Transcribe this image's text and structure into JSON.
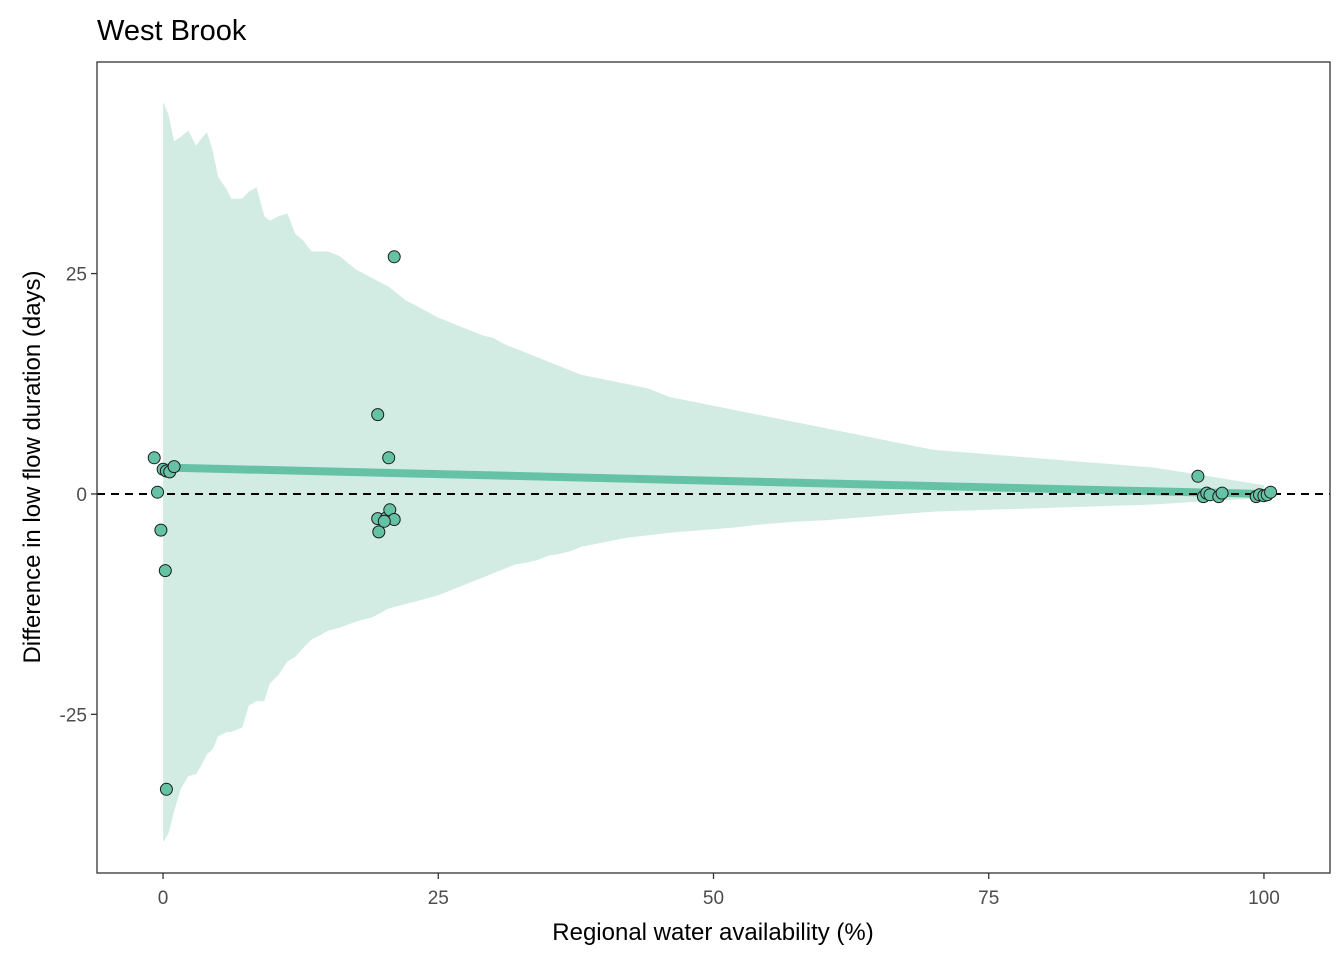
{
  "chart_data": {
    "type": "scatter",
    "title": "West Brook",
    "xlabel": "Regional water availability (%)",
    "ylabel": "Difference in low flow duration (days)",
    "xlim": [
      -6,
      106
    ],
    "ylim": [
      -43,
      49
    ],
    "x_ticks": [
      0,
      25,
      50,
      75,
      100
    ],
    "x_tick_labels": [
      "0",
      "25",
      "50",
      "75",
      "100"
    ],
    "y_ticks": [
      -25,
      0,
      25
    ],
    "y_tick_labels": [
      "-25",
      "0",
      "25"
    ],
    "grid": false,
    "legend": "none",
    "colors": {
      "point": "#66c2a5",
      "ribbon": "#d2ece3",
      "fit_line": "#66c2a5",
      "reference_line": "#000000",
      "panel_border": "#333333"
    },
    "reference_line": {
      "y": 0,
      "style": "dashed"
    },
    "fit_line": {
      "x": [
        0,
        100
      ],
      "y": [
        3.0,
        0.0
      ]
    },
    "ribbon": {
      "x": [
        0,
        0.5,
        1,
        1.6,
        2.3,
        3,
        3.6,
        4,
        4.5,
        5,
        5.8,
        6.2,
        7.2,
        7.8,
        8.5,
        9.2,
        9.7,
        10.5,
        11.3,
        12,
        12.7,
        13.5,
        14.3,
        15,
        16,
        17.5,
        19,
        20.5,
        22,
        23.5,
        25,
        26,
        27,
        28,
        29,
        30,
        31,
        32,
        33,
        34,
        35,
        36,
        37,
        38,
        40,
        42,
        44,
        46,
        48,
        50,
        52,
        54,
        56,
        58,
        60,
        62,
        64,
        66,
        68,
        70,
        75,
        80,
        85,
        90,
        95,
        100
      ],
      "upper": [
        44.5,
        43,
        40,
        40.5,
        41.2,
        39.5,
        40.5,
        41,
        39,
        36,
        34.5,
        33.5,
        33.5,
        34.3,
        34.8,
        31.5,
        31,
        31.5,
        31.8,
        29.5,
        28.8,
        27.5,
        27.5,
        27.5,
        27,
        25.5,
        24.5,
        23.5,
        22,
        21,
        20,
        19.5,
        19,
        18.5,
        18,
        17.7,
        17,
        16.5,
        16,
        15.5,
        15,
        14.5,
        14,
        13.5,
        13,
        12.5,
        12,
        11,
        10.5,
        10,
        9.5,
        9,
        8.5,
        8,
        7.5,
        7,
        6.5,
        6,
        5.5,
        5,
        4.5,
        4,
        3.5,
        3,
        2,
        1
      ],
      "lower": [
        -39.5,
        -38.5,
        -36,
        -33.5,
        -32,
        -31.8,
        -30.5,
        -29.5,
        -29,
        -27.5,
        -27,
        -27,
        -26.5,
        -24,
        -23.5,
        -23.5,
        -21.5,
        -20.5,
        -19,
        -18.5,
        -17.5,
        -16.5,
        -16,
        -15.5,
        -15.2,
        -14.5,
        -14,
        -13,
        -12.5,
        -12,
        -11.5,
        -11,
        -10.5,
        -10,
        -9.5,
        -9,
        -8.5,
        -8,
        -7.8,
        -7.5,
        -7,
        -6.8,
        -6.5,
        -6,
        -5.5,
        -5,
        -4.7,
        -4.4,
        -4.2,
        -4,
        -3.8,
        -3.5,
        -3.3,
        -3.1,
        -3,
        -2.8,
        -2.6,
        -2.4,
        -2.2,
        -2,
        -1.8,
        -1.6,
        -1.4,
        -1.2,
        -0.8,
        -0.5
      ]
    },
    "points": {
      "x": [
        -0.8,
        -0.5,
        0,
        0.3,
        0.6,
        1.0,
        -0.2,
        0.2,
        19.5,
        20.5,
        21.0,
        19.5,
        20.3,
        20.6,
        19.6,
        21.0,
        20.1,
        94.0,
        94.5,
        94.8,
        95.1,
        95.9,
        96.2,
        99.3,
        99.6,
        100.0,
        100.3,
        100.6,
        0.3
      ],
      "y": [
        4.1,
        0.2,
        2.8,
        2.6,
        2.5,
        3.1,
        -4.1,
        -8.7,
        9.0,
        4.1,
        26.9,
        -2.8,
        -2.7,
        -1.8,
        -4.3,
        -2.9,
        -3.1,
        2.0,
        -0.3,
        0.1,
        -0.1,
        -0.3,
        0.1,
        -0.3,
        -0.1,
        -0.2,
        -0.1,
        0.2,
        -33.5
      ]
    }
  }
}
